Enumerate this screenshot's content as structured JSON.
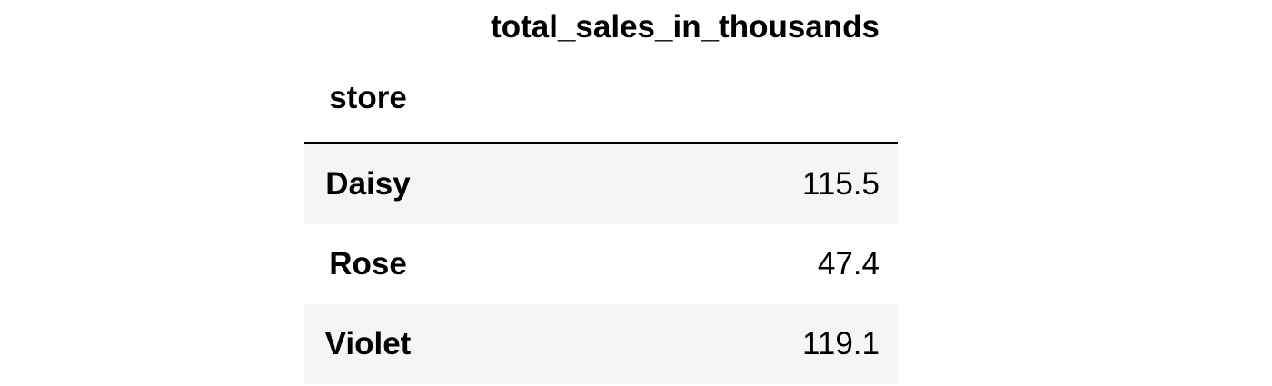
{
  "table": {
    "column_header": "total_sales_in_thousands",
    "index_name": "store",
    "rows": [
      {
        "store": "Daisy",
        "value": "115.5"
      },
      {
        "store": "Rose",
        "value": "47.4"
      },
      {
        "store": "Violet",
        "value": "119.1"
      }
    ]
  },
  "colors": {
    "stripe": "#f5f5f5",
    "rule": "#000000"
  }
}
